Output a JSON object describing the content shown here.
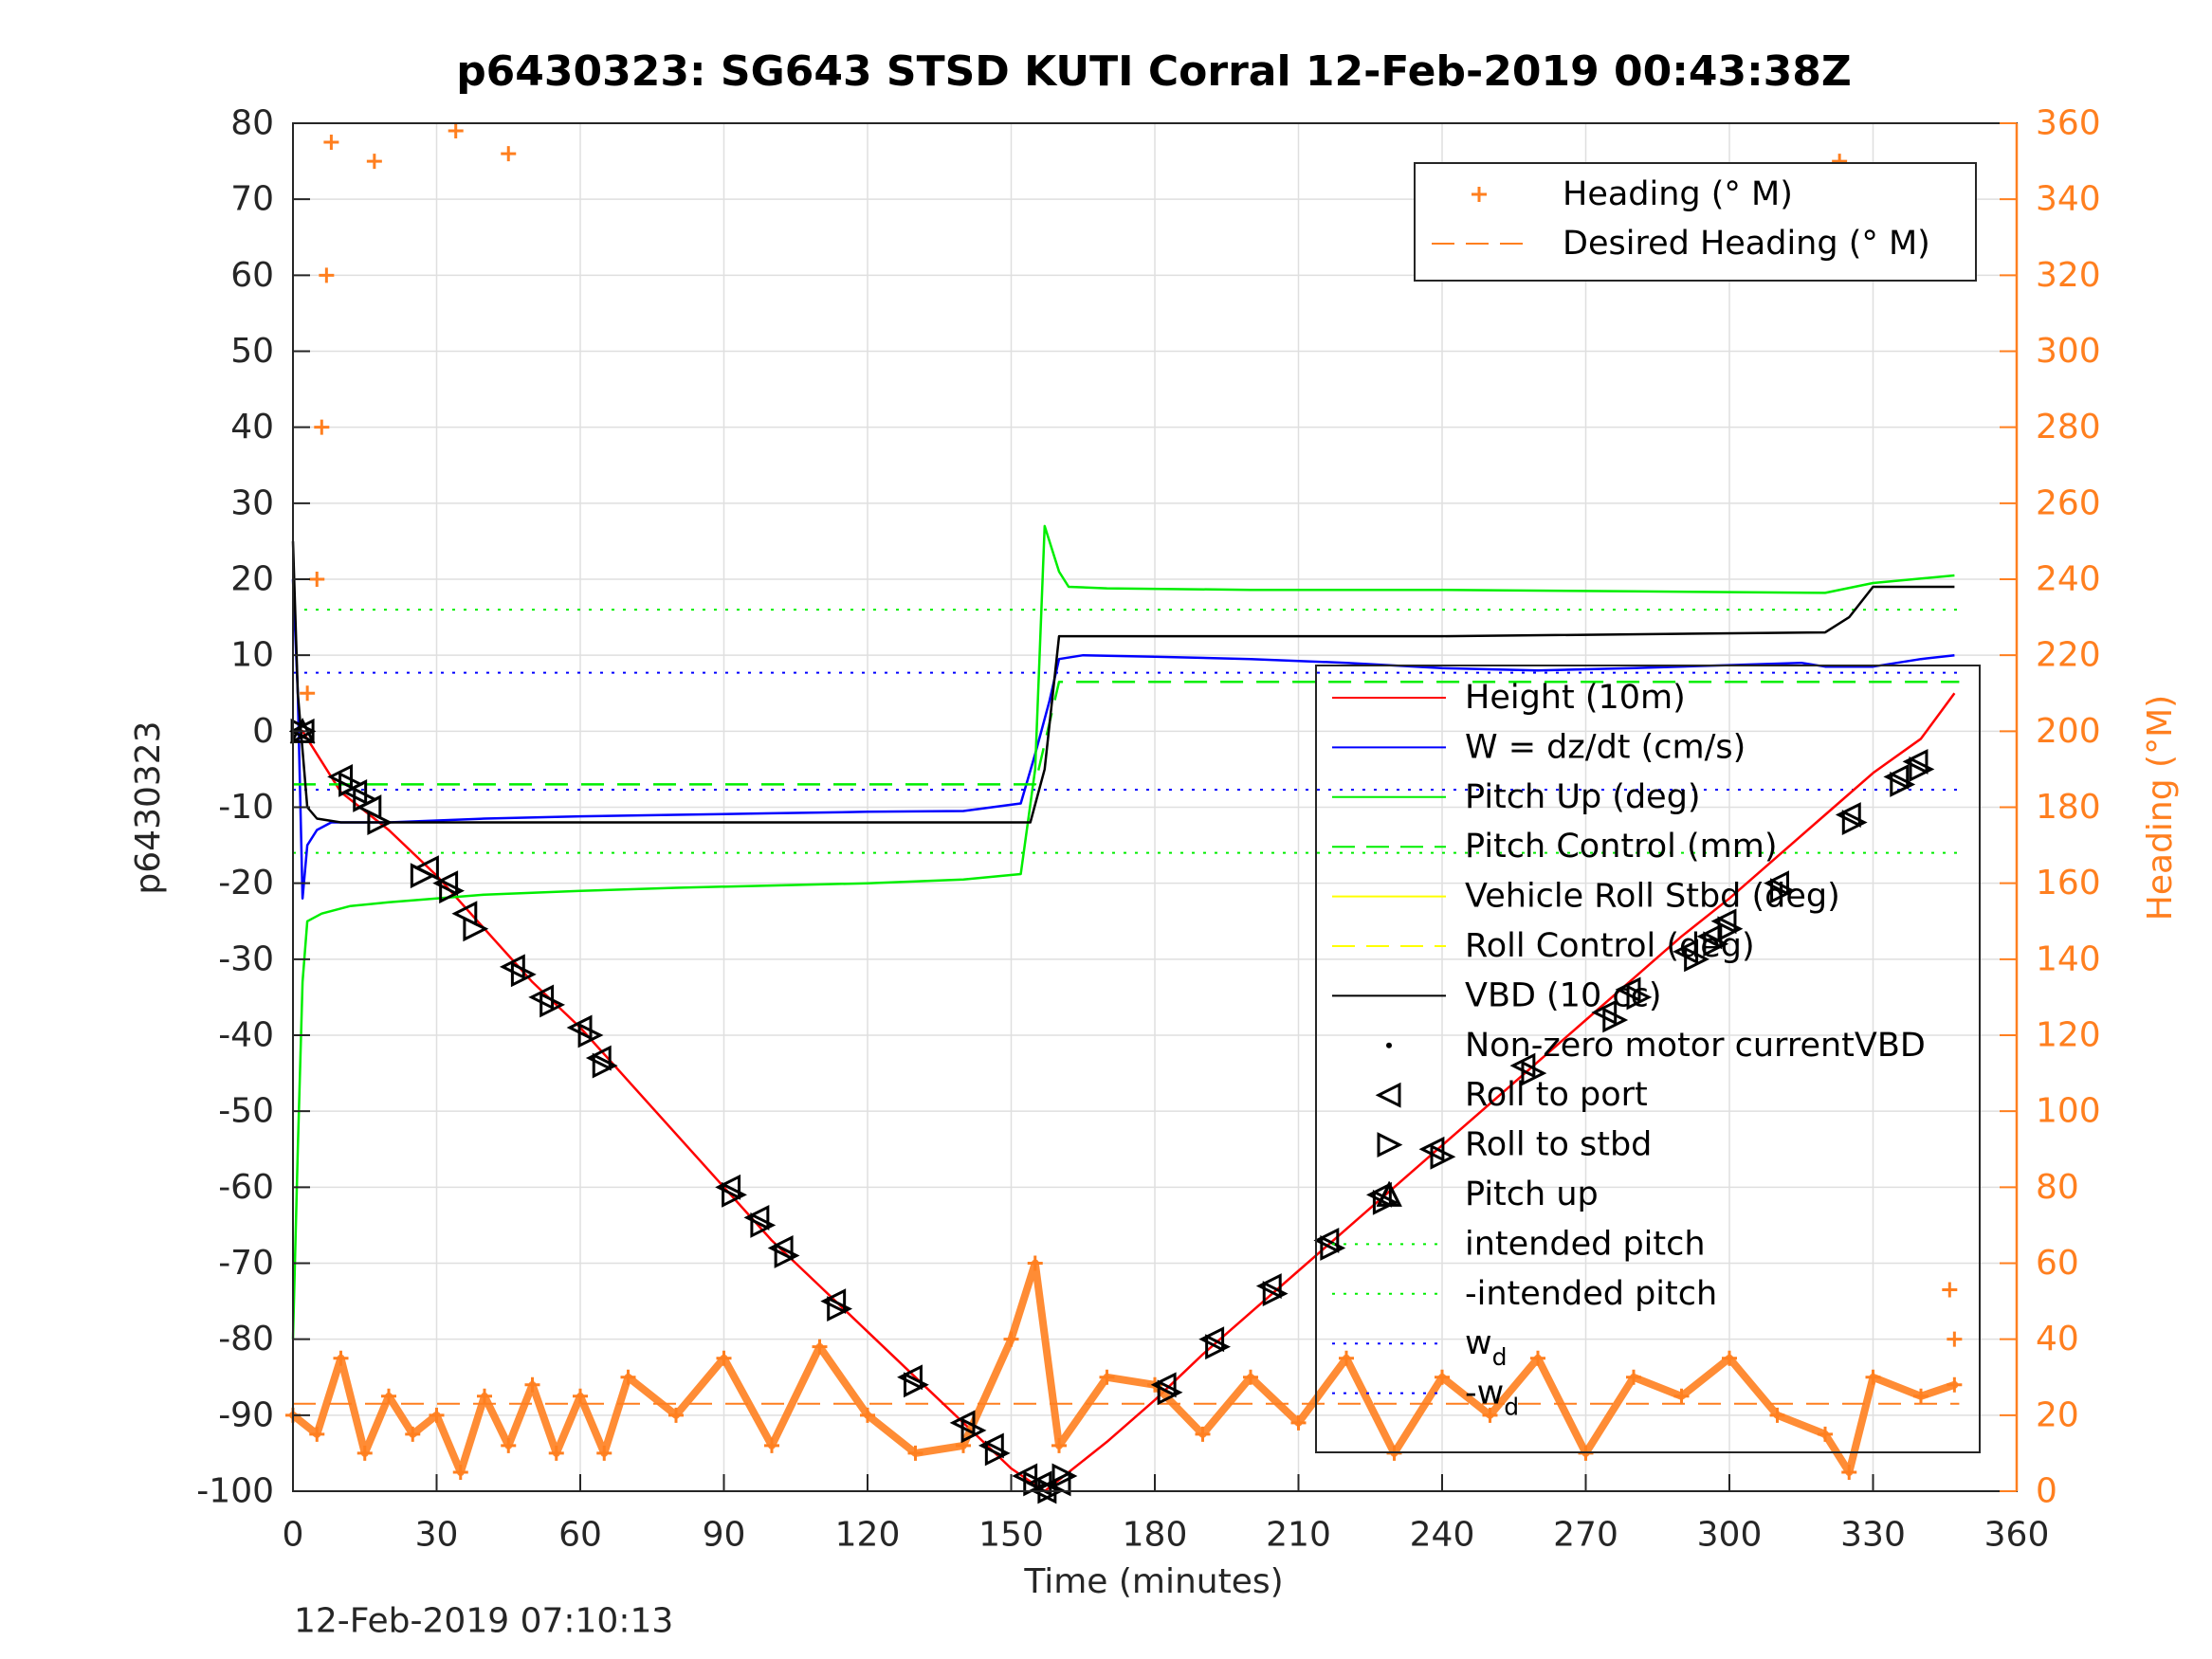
{
  "chart_data": {
    "type": "line",
    "title": "p6430323: SG643 STSD KUTI Corral 12-Feb-2019 00:43:38Z",
    "xlabel": "Time (minutes)",
    "ylabel": "p6430323",
    "y2label": "Heading (°M)",
    "xlim": [
      0,
      360
    ],
    "ylim": [
      -100,
      80
    ],
    "y2lim": [
      0,
      360
    ],
    "xticks": [
      0,
      30,
      60,
      90,
      120,
      150,
      180,
      210,
      240,
      270,
      300,
      330,
      360
    ],
    "yticks": [
      -100,
      -90,
      -80,
      -70,
      -60,
      -50,
      -40,
      -30,
      -20,
      -10,
      0,
      10,
      20,
      30,
      40,
      50,
      60,
      70,
      80
    ],
    "y2ticks": [
      0,
      20,
      40,
      60,
      80,
      100,
      120,
      140,
      160,
      180,
      200,
      220,
      240,
      260,
      280,
      300,
      320,
      340,
      360
    ],
    "grid": true,
    "footer": "12-Feb-2019 07:10:13",
    "colors": {
      "axis": "#262626",
      "grid": "#dfdfdf",
      "orange": "#ff7f1f",
      "height": "#ff0000",
      "w": "#0000ff",
      "pitch": "#00ee00",
      "roll": "#ffff00",
      "vbd": "#000000"
    },
    "legend_top": {
      "placement": "top-right",
      "entries": [
        {
          "label": "Heading (° M)",
          "style": "plus",
          "color": "#ff7f1f"
        },
        {
          "label": "Desired Heading (° M)",
          "style": "dash",
          "color": "#ff7f1f"
        }
      ]
    },
    "legend_main": {
      "placement": "right",
      "entries": [
        {
          "label": "Height (10m)",
          "style": "solid",
          "color": "#ff0000"
        },
        {
          "label": "W = dz/dt (cm/s)",
          "style": "solid",
          "color": "#0000ff"
        },
        {
          "label": "Pitch Up (deg)",
          "style": "solid",
          "color": "#00ee00"
        },
        {
          "label": "Pitch Control (mm)",
          "style": "dash",
          "color": "#00ee00"
        },
        {
          "label": "Vehicle Roll Stbd (deg)",
          "style": "solid",
          "color": "#ffff00"
        },
        {
          "label": "Roll Control (deg)",
          "style": "dash",
          "color": "#ffff00"
        },
        {
          "label": "VBD (10 cc)",
          "style": "solid",
          "color": "#000000"
        },
        {
          "label": "Non-zero motor currentVBD",
          "style": "dot",
          "color": "#000000"
        },
        {
          "label": "Roll to port",
          "style": "tri-left",
          "color": "#000000"
        },
        {
          "label": "Roll to stbd",
          "style": "tri-right",
          "color": "#000000"
        },
        {
          "label": "Pitch up",
          "style": "tri-up",
          "color": "#000000"
        },
        {
          "label": "intended pitch",
          "style": "dotted",
          "color": "#00ee00"
        },
        {
          "label": "-intended pitch",
          "style": "dotted",
          "color": "#00ee00"
        },
        {
          "label": "w",
          "sub": "d",
          "style": "dotted",
          "color": "#0000ff"
        },
        {
          "label": "-w",
          "sub": "d",
          "style": "dotted",
          "color": "#0000ff"
        }
      ]
    },
    "reference_lines": [
      {
        "name": "intended pitch",
        "y": 16,
        "color": "#00ee00"
      },
      {
        "name": "-intended pitch",
        "y": -16,
        "color": "#00ee00"
      },
      {
        "name": "w_d",
        "y": 7.7,
        "color": "#0000ff"
      },
      {
        "name": "-w_d",
        "y": -7.7,
        "color": "#0000ff"
      }
    ],
    "desired_heading": {
      "y2": 23,
      "x_start": 0,
      "x_end": 348
    },
    "series": [
      {
        "name": "Height (10m)",
        "color": "#ff0000",
        "x": [
          0,
          2,
          10,
          20,
          30,
          40,
          50,
          60,
          70,
          80,
          90,
          100,
          110,
          120,
          130,
          140,
          150,
          157,
          160,
          170,
          180,
          190,
          200,
          210,
          220,
          230,
          240,
          250,
          260,
          270,
          280,
          290,
          300,
          310,
          320,
          330,
          340,
          347
        ],
        "y": [
          0,
          0,
          -8,
          -13,
          -19,
          -26,
          -33,
          -39,
          -46,
          -53,
          -60,
          -67,
          -73,
          -79,
          -85,
          -91,
          -97,
          -100,
          -98.5,
          -93.5,
          -88,
          -82,
          -76.5,
          -71,
          -65.5,
          -60,
          -54.5,
          -49,
          -43.5,
          -38,
          -32.5,
          -27,
          -22,
          -16.5,
          -11,
          -5.5,
          -1,
          5
        ]
      },
      {
        "name": "W = dz/dt (cm/s)",
        "color": "#0000ff",
        "x": [
          0,
          1,
          2,
          3,
          5,
          8,
          12,
          20,
          40,
          60,
          80,
          100,
          120,
          140,
          152,
          155,
          158,
          160,
          165,
          180,
          200,
          220,
          240,
          260,
          280,
          300,
          315,
          320,
          330,
          340,
          347
        ],
        "y": [
          20,
          5,
          -22,
          -15,
          -13,
          -12,
          -12,
          -12,
          -11.5,
          -11.2,
          -11,
          -10.8,
          -10.6,
          -10.5,
          -9.5,
          -3,
          4,
          9.5,
          10,
          9.8,
          9.5,
          9,
          8.3,
          8,
          8.3,
          8.7,
          9,
          8.5,
          8.5,
          9.5,
          10
        ]
      },
      {
        "name": "Pitch Up (deg)",
        "color": "#00ee00",
        "x": [
          0,
          1,
          2,
          3,
          6,
          12,
          20,
          40,
          60,
          80,
          100,
          120,
          140,
          152,
          155,
          157,
          160,
          162,
          170,
          200,
          240,
          280,
          320,
          330,
          347
        ],
        "y": [
          -80,
          -55,
          -33,
          -25,
          -24,
          -23,
          -22.5,
          -21.5,
          -21,
          -20.6,
          -20.3,
          -20,
          -19.5,
          -18.8,
          -5,
          27,
          21,
          19,
          18.8,
          18.6,
          18.6,
          18.4,
          18.2,
          19.5,
          20.5
        ]
      },
      {
        "name": "Pitch Control (mm)",
        "color": "#00ee00",
        "dashed": true,
        "x": [
          0,
          155,
          160,
          348
        ],
        "y": [
          -7,
          -7,
          6.5,
          6.5
        ]
      },
      {
        "name": "VBD (10 cc)",
        "color": "#000000",
        "x": [
          0,
          1,
          3,
          5,
          10,
          40,
          100,
          154,
          157,
          160,
          170,
          240,
          320,
          325,
          330,
          347
        ],
        "y": [
          25,
          5,
          -10,
          -11.5,
          -12,
          -12,
          -12,
          -12,
          -5,
          12.5,
          12.5,
          12.5,
          13,
          15,
          19,
          19
        ]
      },
      {
        "name": "Heading (° M)",
        "color": "#ff7f1f",
        "axis": "right",
        "x": [
          0,
          5,
          10,
          15,
          20,
          25,
          30,
          35,
          40,
          45,
          50,
          55,
          60,
          65,
          70,
          80,
          90,
          100,
          110,
          120,
          130,
          140,
          150,
          155,
          160,
          170,
          180,
          190,
          200,
          210,
          220,
          230,
          240,
          250,
          260,
          270,
          280,
          290,
          300,
          310,
          320,
          325,
          330,
          340,
          347
        ],
        "y": [
          20,
          15,
          35,
          10,
          25,
          15,
          20,
          5,
          25,
          12,
          28,
          10,
          25,
          10,
          30,
          20,
          35,
          12,
          38,
          20,
          10,
          12,
          40,
          60,
          12,
          30,
          28,
          15,
          30,
          18,
          35,
          10,
          30,
          20,
          35,
          10,
          30,
          25,
          35,
          20,
          15,
          5,
          30,
          25,
          28
        ]
      }
    ],
    "heading_outliers": {
      "x": [
        3,
        5,
        6,
        7,
        8,
        17,
        34,
        45,
        323,
        346,
        347
      ],
      "y2": [
        210,
        240,
        280,
        320,
        355,
        350,
        358,
        352,
        350,
        53,
        40
      ]
    },
    "markers": {
      "roll_to_port": {
        "x": [
          2,
          10,
          13,
          16,
          28,
          32,
          36,
          46,
          52,
          60,
          64,
          91,
          97,
          102,
          113,
          129,
          140,
          146,
          153,
          156,
          157,
          160,
          182,
          192,
          204,
          216,
          227,
          238,
          257,
          274,
          279,
          291,
          296,
          299,
          310,
          325,
          335,
          339
        ],
        "y": [
          0,
          -6,
          -8,
          -10,
          -18,
          -20,
          -24,
          -31,
          -35,
          -39,
          -43,
          -60,
          -64,
          -68,
          -75,
          -85,
          -91,
          -94,
          -98,
          -99,
          -100,
          -99,
          -86,
          -80,
          -73,
          -67,
          -61,
          -55,
          -44,
          -37,
          -34,
          -29,
          -27,
          -25,
          -20,
          -11,
          -6,
          -4
        ]
      },
      "roll_to_stbd": {
        "x": [
          2,
          12,
          15,
          18,
          27,
          33,
          38,
          48,
          54,
          62,
          65,
          92,
          98,
          103,
          114,
          130,
          142,
          147,
          155,
          158,
          161,
          183,
          193,
          205,
          217,
          228,
          240,
          259,
          276,
          281,
          293,
          297,
          300,
          311,
          326,
          336,
          340
        ],
        "y": [
          0,
          -7,
          -9,
          -12,
          -19,
          -21,
          -26,
          -32,
          -36,
          -40,
          -44,
          -61,
          -65,
          -69,
          -76,
          -86,
          -92,
          -95,
          -99,
          -100,
          -98,
          -87,
          -81,
          -74,
          -68,
          -62,
          -56,
          -45,
          -38,
          -35,
          -30,
          -28,
          -26,
          -21,
          -12,
          -7,
          -5
        ]
      },
      "pitch_up": {
        "x": [
          2,
          229
        ],
        "y": [
          0,
          -61
        ]
      }
    }
  }
}
